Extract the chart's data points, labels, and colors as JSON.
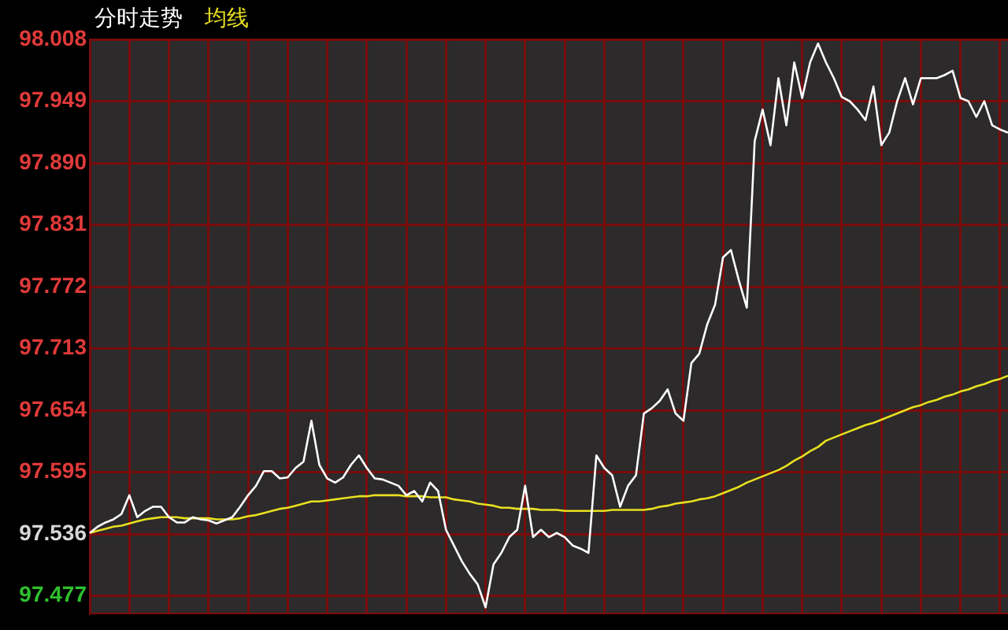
{
  "chart_data": {
    "type": "line",
    "legend": "top left",
    "grid": true,
    "ylim": [
      97.46,
      98.008
    ],
    "yticks": [
      97.477,
      97.536,
      97.595,
      97.654,
      97.713,
      97.772,
      97.831,
      {
        "value": 97.89,
        "label": "97.890"
      },
      97.949,
      98.008
    ],
    "categories": [
      null,
      null,
      null,
      null,
      null,
      null,
      null,
      null,
      null,
      null,
      null,
      null,
      null,
      null,
      null,
      null,
      null,
      null,
      null,
      null,
      null,
      null,
      null,
      null,
      null,
      null,
      null,
      null,
      null,
      null,
      null,
      null,
      null,
      null,
      null,
      null,
      null,
      null,
      null,
      null,
      null,
      null,
      null,
      null,
      null,
      null,
      null,
      null,
      null,
      null,
      null,
      null,
      null,
      null,
      null,
      null,
      null,
      null,
      null,
      null,
      null,
      null,
      null,
      null,
      null,
      null,
      null,
      null,
      null,
      null,
      null,
      null,
      null,
      null,
      null,
      null,
      null,
      null,
      null,
      null,
      null,
      null,
      null,
      null,
      null,
      null,
      null,
      null,
      null,
      null,
      null,
      null,
      null,
      null,
      null,
      null,
      null,
      null,
      null,
      null,
      null,
      null,
      null,
      null,
      null,
      null,
      null,
      null,
      null,
      null,
      null,
      null,
      null,
      null,
      null,
      null,
      null
    ],
    "series": [
      {
        "name": "分时走势",
        "color": "#ffffff",
        "values": [
          97.537,
          97.543,
          97.547,
          97.55,
          97.555,
          97.573,
          97.552,
          97.558,
          97.562,
          97.562,
          97.552,
          97.547,
          97.547,
          97.552,
          97.55,
          97.549,
          97.546,
          97.549,
          97.552,
          97.562,
          97.573,
          97.582,
          97.596,
          97.596,
          97.589,
          97.59,
          97.599,
          97.605,
          97.644,
          97.602,
          97.589,
          97.585,
          97.59,
          97.602,
          97.611,
          97.599,
          97.589,
          97.588,
          97.585,
          97.582,
          97.573,
          97.577,
          97.567,
          97.585,
          97.577,
          97.54,
          97.525,
          97.51,
          97.498,
          97.488,
          97.466,
          97.507,
          97.518,
          97.533,
          97.54,
          97.582,
          97.533,
          97.54,
          97.533,
          97.537,
          97.533,
          97.525,
          97.522,
          97.518,
          97.611,
          97.599,
          97.592,
          97.562,
          97.582,
          97.592,
          97.651,
          97.656,
          97.663,
          97.674,
          97.651,
          97.644,
          97.699,
          97.708,
          97.736,
          97.755,
          97.8,
          97.807,
          97.778,
          97.752,
          97.911,
          97.941,
          97.907,
          97.971,
          97.926,
          97.986,
          97.952,
          97.986,
          98.004,
          97.986,
          97.971,
          97.953,
          97.949,
          97.941,
          97.931,
          97.963,
          97.907,
          97.919,
          97.949,
          97.971,
          97.946,
          97.971,
          97.971,
          97.971,
          97.974,
          97.978,
          97.952,
          97.949,
          97.934,
          97.949,
          97.926,
          97.922,
          97.919
        ]
      },
      {
        "name": "均线",
        "color": "#e8e020",
        "values": [
          97.537,
          97.539,
          97.541,
          97.543,
          97.544,
          97.546,
          97.548,
          97.55,
          97.551,
          97.552,
          97.552,
          97.552,
          97.551,
          97.551,
          97.551,
          97.551,
          97.55,
          97.55,
          97.55,
          97.551,
          97.553,
          97.554,
          97.556,
          97.558,
          97.56,
          97.561,
          97.563,
          97.565,
          97.567,
          97.567,
          97.568,
          97.569,
          97.57,
          97.571,
          97.572,
          97.572,
          97.573,
          97.573,
          97.573,
          97.573,
          97.572,
          97.572,
          97.572,
          97.571,
          97.571,
          97.571,
          97.569,
          97.568,
          97.567,
          97.565,
          97.564,
          97.563,
          97.561,
          97.561,
          97.56,
          97.56,
          97.56,
          97.559,
          97.559,
          97.559,
          97.558,
          97.558,
          97.558,
          97.558,
          97.558,
          97.558,
          97.559,
          97.559,
          97.559,
          97.559,
          97.559,
          97.56,
          97.562,
          97.563,
          97.565,
          97.566,
          97.567,
          97.569,
          97.57,
          97.572,
          97.575,
          97.578,
          97.581,
          97.585,
          97.588,
          97.591,
          97.594,
          97.597,
          97.601,
          97.606,
          97.61,
          97.615,
          97.619,
          97.625,
          97.628,
          97.631,
          97.634,
          97.637,
          97.64,
          97.642,
          97.645,
          97.648,
          97.651,
          97.654,
          97.657,
          97.659,
          97.662,
          97.664,
          97.667,
          97.669,
          97.672,
          97.674,
          97.677,
          97.679,
          97.682,
          97.684,
          97.687
        ]
      }
    ]
  }
}
